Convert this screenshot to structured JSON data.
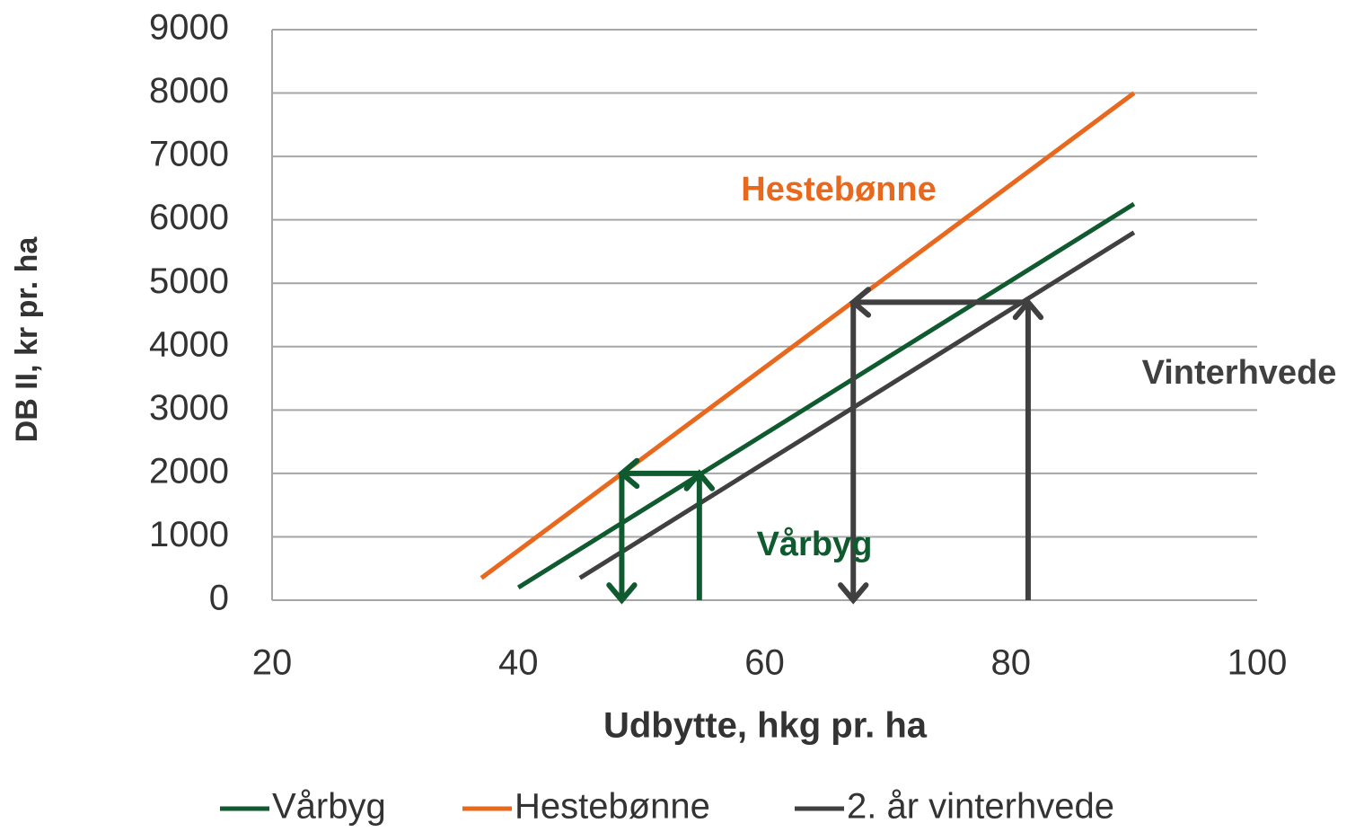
{
  "chart_data": {
    "type": "line",
    "x_label": "Udbytte, hkg pr. ha",
    "y_label": "DB II, kr pr. ha",
    "xlim": [
      20,
      100
    ],
    "xticks": [
      20,
      40,
      60,
      80,
      100
    ],
    "ylim": [
      0,
      9000
    ],
    "yticks": [
      0,
      1000,
      2000,
      3000,
      4000,
      5000,
      6000,
      7000,
      8000,
      9000
    ],
    "grid": true,
    "legend": "bottom",
    "series": [
      {
        "name": "Vårbyg",
        "color": "#0f5a2e",
        "x": [
          40,
          90
        ],
        "values": [
          200,
          6250
        ]
      },
      {
        "name": "Hestebønne",
        "color": "#e8681e",
        "x": [
          37,
          90
        ],
        "values": [
          350,
          8000
        ]
      },
      {
        "name": "2. år vinterhvede",
        "color": "#404040",
        "x": [
          45,
          90
        ],
        "values": [
          350,
          5800
        ]
      }
    ],
    "annotations": [
      {
        "text": "Hestebønne",
        "color": "#e8681e"
      },
      {
        "text": "Vinterhvede",
        "color": "#404040"
      },
      {
        "text": "Vårbyg",
        "color": "#0f5a2e"
      }
    ],
    "arrows": [
      {
        "color": "#0f5a2e",
        "x": [
          54.7,
          54.7
        ],
        "y": [
          0,
          2000
        ]
      },
      {
        "color": "#0f5a2e",
        "x": [
          54.7,
          48.4
        ],
        "y": [
          2000,
          2000
        ]
      },
      {
        "color": "#0f5a2e",
        "x": [
          48.4,
          48.4
        ],
        "y": [
          2000,
          0
        ]
      },
      {
        "color": "#404040",
        "x": [
          81.4,
          81.4
        ],
        "y": [
          0,
          4700
        ]
      },
      {
        "color": "#404040",
        "x": [
          81.4,
          67.2
        ],
        "y": [
          4700,
          4700
        ]
      },
      {
        "color": "#404040",
        "x": [
          67.2,
          67.2
        ],
        "y": [
          4700,
          0
        ]
      }
    ]
  }
}
